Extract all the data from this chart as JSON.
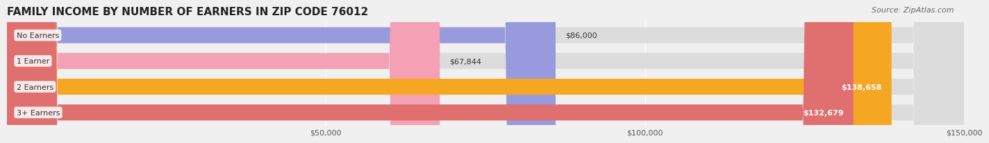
{
  "title": "FAMILY INCOME BY NUMBER OF EARNERS IN ZIP CODE 76012",
  "source": "Source: ZipAtlas.com",
  "categories": [
    "No Earners",
    "1 Earner",
    "2 Earners",
    "3+ Earners"
  ],
  "values": [
    86000,
    67844,
    138658,
    132679
  ],
  "bar_colors": [
    "#9999dd",
    "#f4a0b5",
    "#f5a623",
    "#e07070"
  ],
  "bar_colors_light": [
    "#b8b8ee",
    "#f9c0cf",
    "#f7c070",
    "#e89090"
  ],
  "value_labels": [
    "$86,000",
    "$67,844",
    "$138,658",
    "$132,679"
  ],
  "label_inside": [
    false,
    false,
    true,
    true
  ],
  "x_min": 0,
  "x_max": 150000,
  "x_ticks": [
    50000,
    100000,
    150000
  ],
  "x_tick_labels": [
    "$50,000",
    "$100,000",
    "$150,000"
  ],
  "bg_color": "#f0f0f0",
  "bar_bg_color": "#e8e8e8",
  "title_fontsize": 11,
  "source_fontsize": 8
}
